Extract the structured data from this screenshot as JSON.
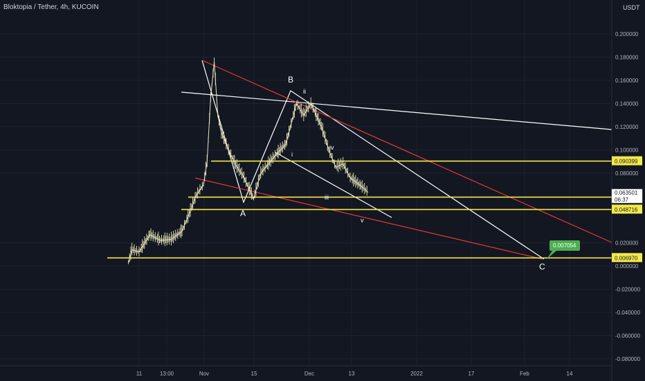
{
  "header": {
    "symbol": "Bloktopia / Tether, 4h, KUCOIN",
    "currency": "USDT"
  },
  "colors": {
    "background": "#131722",
    "horizontal_levels": "#f4e94b",
    "red_trend": "#e53935",
    "white_lines": "#ffffff",
    "candle": "#e8e6b8",
    "target_badge": "#4caf50"
  },
  "chart_data": {
    "type": "line",
    "title": "Bloktopia / Tether, 4h, KUCOIN",
    "ylabel": "USDT",
    "ylim": [
      -0.0855,
      0.222
    ],
    "x_ticks": [
      "11",
      "13:00",
      "Nov",
      "15",
      "Dec",
      "13",
      "2022",
      "17",
      "Feb",
      "14"
    ],
    "y_ticks": [
      "0.200000",
      "0.180000",
      "0.160000",
      "0.140000",
      "0.120000",
      "0.100000",
      "0.080000",
      "0.020000",
      "0.000000",
      "-0.020000",
      "-0.040000",
      "-0.060000",
      "-0.080000"
    ],
    "price_series": {
      "points": [
        [
          "Oct 08",
          0.003
        ],
        [
          "Oct 09",
          0.014
        ],
        [
          "Oct 11",
          0.012
        ],
        [
          "Oct 14",
          0.027
        ],
        [
          "Oct 17",
          0.022
        ],
        [
          "Oct 20",
          0.023
        ],
        [
          "Oct 23",
          0.03
        ],
        [
          "Oct 25",
          0.045
        ],
        [
          "Oct 27",
          0.061
        ],
        [
          "Oct 29",
          0.07
        ],
        [
          "Oct 30",
          0.09
        ],
        [
          "Oct 31",
          0.145
        ],
        [
          "Nov 01",
          0.176
        ],
        [
          "Nov 02",
          0.13
        ],
        [
          "Nov 03",
          0.115
        ],
        [
          "Nov 05",
          0.1
        ],
        [
          "Nov 07",
          0.087
        ],
        [
          "Nov 09",
          0.078
        ],
        [
          "Nov 12",
          0.058
        ],
        [
          "Nov 14",
          0.08
        ],
        [
          "Nov 18",
          0.095
        ],
        [
          "Nov 21",
          0.105
        ],
        [
          "Nov 24",
          0.14
        ],
        [
          "Nov 26",
          0.13
        ],
        [
          "Nov 28",
          0.14
        ],
        [
          "Dec 01",
          0.12
        ],
        [
          "Dec 03",
          0.1
        ],
        [
          "Dec 05",
          0.085
        ],
        [
          "Dec 07",
          0.088
        ],
        [
          "Dec 09",
          0.076
        ],
        [
          "Dec 12",
          0.069
        ],
        [
          "Dec 14",
          0.0635
        ]
      ]
    },
    "horizontal_levels": [
      {
        "label": "0.090399",
        "value": 0.090399
      },
      {
        "label": "0.059379",
        "value": 0.059379
      },
      {
        "label": "0.048716",
        "value": 0.048716
      },
      {
        "label": "0.006970",
        "value": 0.00697
      }
    ],
    "last_price": {
      "label": "0.063501",
      "countdown": "06:37"
    },
    "target": {
      "label": "0.007054",
      "value": 0.007054
    },
    "wave_labels": [
      "A",
      "B",
      "C",
      "i",
      "ii",
      "iii",
      "iv",
      "v"
    ]
  }
}
